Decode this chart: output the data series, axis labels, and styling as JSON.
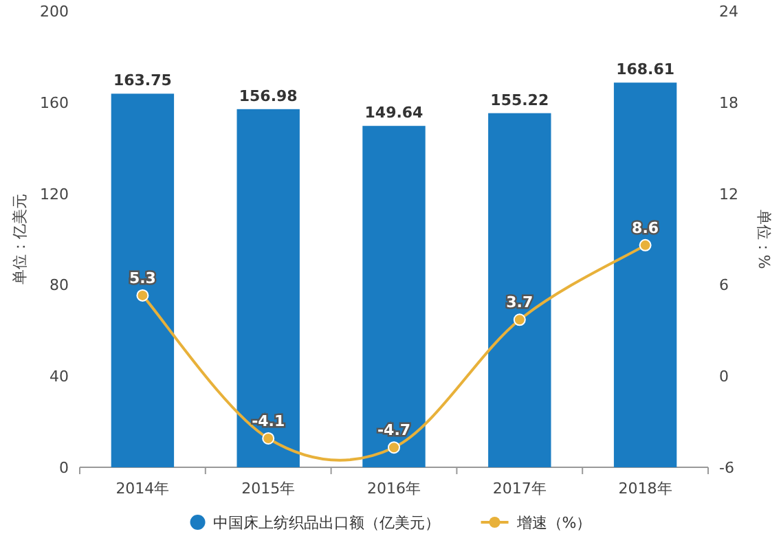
{
  "chart_data": {
    "type": "bar",
    "categories": [
      "2014年",
      "2015年",
      "2016年",
      "2017年",
      "2018年"
    ],
    "ylabel": "单位：亿美元",
    "y2label": "单位：%",
    "ylim": [
      0,
      200
    ],
    "yticks": [
      0,
      40,
      80,
      120,
      160,
      200
    ],
    "y2lim": [
      -6,
      24
    ],
    "y2ticks": [
      -6,
      0,
      6,
      12,
      18,
      24
    ],
    "data_labels": true,
    "legend": "bottom",
    "marker": "circle",
    "series": [
      {
        "name": "中国床上纺织品出口额（亿美元）",
        "color": "#1a7cc2",
        "values": [
          163.75,
          156.98,
          149.64,
          155.22,
          168.61
        ]
      },
      {
        "name": "增速（%）",
        "type": "line",
        "axis": "y2",
        "color": "#e8b13a",
        "values": [
          5.3,
          -4.1,
          -4.7,
          3.7,
          8.6
        ]
      }
    ]
  }
}
